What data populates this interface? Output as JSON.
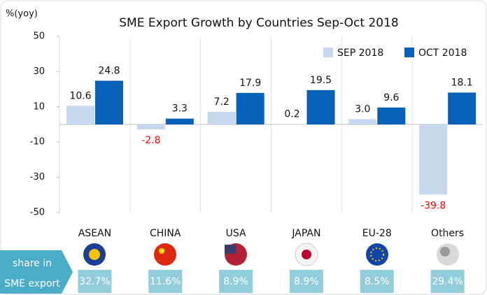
{
  "chart_data": {
    "type": "bar",
    "title": "SME Export Growth by Countries Sep-Oct 2018",
    "y_label": "%(yoy)",
    "categories": [
      "ASEAN",
      "CHINA",
      "USA",
      "JAPAN",
      "EU-28",
      "Others"
    ],
    "series": [
      {
        "name": "SEP 2018",
        "color": "#c6d7ee",
        "values": [
          10.6,
          -2.8,
          7.2,
          0.2,
          3,
          -39.8
        ],
        "value_labels": [
          "10.6",
          "-2.8",
          "7.2",
          "0.2",
          "3.0",
          "-39.8"
        ]
      },
      {
        "name": "OCT 2018",
        "color": "#0562b8",
        "values": [
          24.8,
          3.3,
          17.9,
          19.5,
          9.6,
          18.1
        ]
      }
    ],
    "ylim": [
      -50,
      50
    ],
    "yticks": [
      50,
      30,
      10,
      -10,
      -30,
      -50
    ],
    "grid": true,
    "legend": "top-right",
    "negative_label_color": "#ff0000",
    "share_label": [
      "share in",
      "SME export"
    ],
    "shares": [
      "32.7%",
      "11.6%",
      "8.9%",
      "8.9%",
      "8.5%",
      "29.4%"
    ]
  }
}
